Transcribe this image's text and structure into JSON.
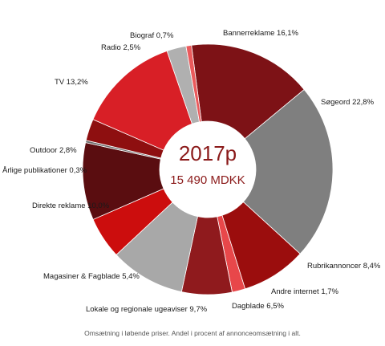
{
  "chart_data": {
    "type": "pie",
    "donut": true,
    "center": {
      "year": "2017p",
      "total": "15 490 MDKK"
    },
    "unit": "%",
    "slices": [
      {
        "label": "Bannerreklame 16,1%",
        "value": 16.1,
        "color": "#7d1216"
      },
      {
        "label": "Søgeord 22,8%",
        "value": 22.8,
        "color": "#7f7f7f"
      },
      {
        "label": "Rubrikannoncer 8,4%",
        "value": 8.4,
        "color": "#9b0d0d"
      },
      {
        "label": "Andre internet 1,7%",
        "value": 1.7,
        "color": "#e8474a"
      },
      {
        "label": "Dagblade 6,5%",
        "value": 6.5,
        "color": "#8f1a1d"
      },
      {
        "label": "Lokale og regionale ugeaviser 9,7%",
        "value": 9.7,
        "color": "#a8a8a8"
      },
      {
        "label": "Magasiner & Fagblade 5,4%",
        "value": 5.4,
        "color": "#cc0d0d"
      },
      {
        "label": "Direkte reklame 10,0%",
        "value": 10.0,
        "color": "#5a0d10"
      },
      {
        "label": "Årlige publikationer 0,3%",
        "value": 0.3,
        "color": "#6e6e6e"
      },
      {
        "label": "Outdoor 2,8%",
        "value": 2.8,
        "color": "#8e0f10"
      },
      {
        "label": "TV 13,2%",
        "value": 13.2,
        "color": "#d81f26"
      },
      {
        "label": "Radio 2,5%",
        "value": 2.5,
        "color": "#b0b0b0"
      },
      {
        "label": "Biograf 0,7%",
        "value": 0.7,
        "color": "#ea5a5c"
      }
    ]
  },
  "footnote": "Omsætning i løbende priser. Andel i procent af annonceomsætning i alt."
}
